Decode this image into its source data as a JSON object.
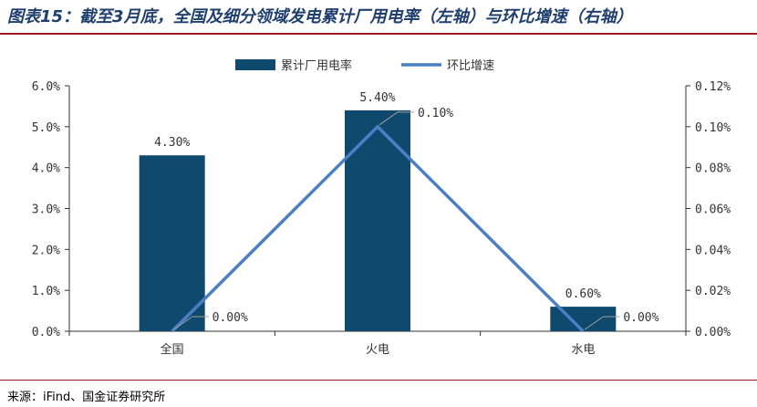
{
  "figure": {
    "title": "图表15：截至3月底，全国及细分领域发电累计厂用电率（左轴）与环比增速（右轴）",
    "source": "来源：iFind、国金证券研究所"
  },
  "chart_data": {
    "type": "bar",
    "categories": [
      "全国",
      "火电",
      "水电"
    ],
    "series": [
      {
        "name": "累计厂用电率",
        "type": "bar",
        "axis": "left",
        "values": [
          4.3,
          5.4,
          0.6
        ],
        "value_labels": [
          "4.30%",
          "5.40%",
          "0.60%"
        ],
        "color": "#0f4a6e"
      },
      {
        "name": "环比增速",
        "type": "line",
        "axis": "right",
        "values": [
          0.0,
          0.1,
          0.0
        ],
        "value_labels": [
          "0.00%",
          "0.10%",
          "0.00%"
        ],
        "color": "#4a7fc6"
      }
    ],
    "y_left": {
      "ylim": [
        0,
        6.0
      ],
      "ticks": [
        0,
        1,
        2,
        3,
        4,
        5,
        6
      ],
      "tick_labels": [
        "0.0%",
        "1.0%",
        "2.0%",
        "3.0%",
        "4.0%",
        "5.0%",
        "6.0%"
      ]
    },
    "y_right": {
      "ylim": [
        0,
        0.12
      ],
      "ticks": [
        0,
        0.02,
        0.04,
        0.06,
        0.08,
        0.1,
        0.12
      ],
      "tick_labels": [
        "0.00%",
        "0.02%",
        "0.04%",
        "0.06%",
        "0.08%",
        "0.10%",
        "0.12%"
      ]
    },
    "legend_position": "top-center",
    "grid": false
  }
}
